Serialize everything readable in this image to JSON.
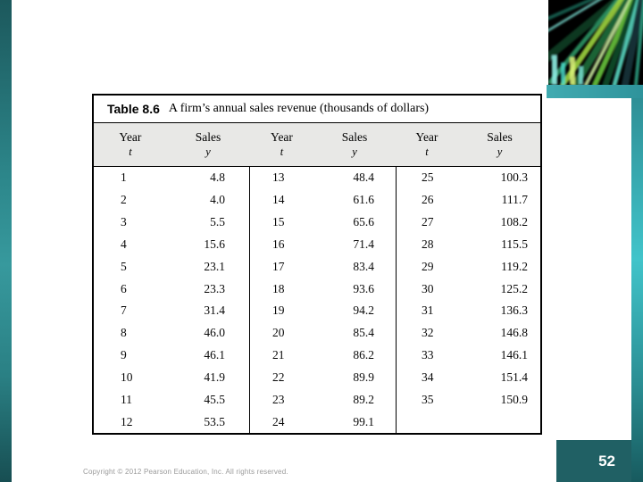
{
  "slide": {
    "page_number": "52",
    "footer": "Copyright © 2012 Pearson Education, Inc. All rights reserved.",
    "accent_colors": {
      "teal_dark": "#1c585c",
      "teal_mid": "#2e939b",
      "teal_light": "#41c4ca",
      "page_box": "#206064",
      "table_header_bg": "#e8e8e6"
    },
    "decoration": "fiber-optic-light-streaks"
  },
  "table": {
    "type": "table",
    "title_label": "Table 8.6",
    "title_text": "A firm’s annual sales revenue (thousands of dollars)",
    "header": {
      "year_title": "Year",
      "year_sub": "t",
      "sales_title": "Sales",
      "sales_sub": "y"
    },
    "columns": [
      {
        "years": [
          "1",
          "2",
          "3",
          "4",
          "5",
          "6",
          "7",
          "8",
          "9",
          "10",
          "11",
          "12"
        ],
        "sales": [
          "4.8",
          "4.0",
          "5.5",
          "15.6",
          "23.1",
          "23.3",
          "31.4",
          "46.0",
          "46.1",
          "41.9",
          "45.5",
          "53.5"
        ]
      },
      {
        "years": [
          "13",
          "14",
          "15",
          "16",
          "17",
          "18",
          "19",
          "20",
          "21",
          "22",
          "23",
          "24"
        ],
        "sales": [
          "48.4",
          "61.6",
          "65.6",
          "71.4",
          "83.4",
          "93.6",
          "94.2",
          "85.4",
          "86.2",
          "89.9",
          "89.2",
          "99.1"
        ]
      },
      {
        "years": [
          "25",
          "26",
          "27",
          "28",
          "29",
          "30",
          "31",
          "32",
          "33",
          "34",
          "35"
        ],
        "sales": [
          "100.3",
          "111.7",
          "108.2",
          "115.5",
          "119.2",
          "125.2",
          "136.3",
          "146.8",
          "146.1",
          "151.4",
          "150.9"
        ]
      }
    ]
  }
}
